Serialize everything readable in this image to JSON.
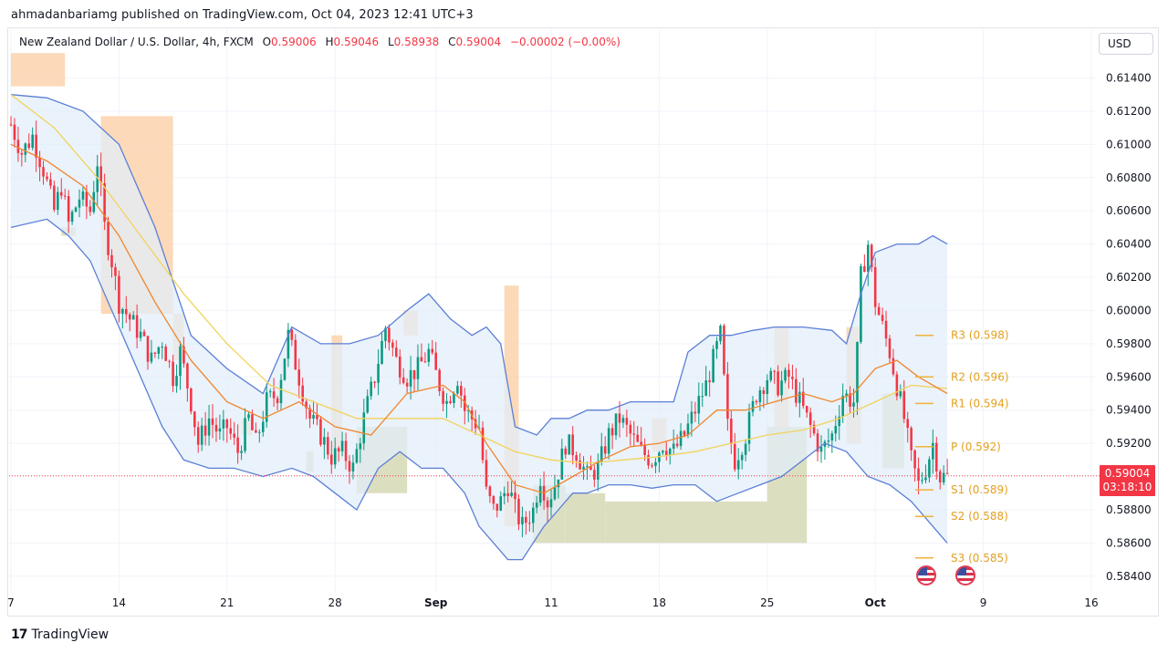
{
  "header": {
    "caption": "ahmadanbariamg published on TradingView.com, Oct 04, 2023 12:41 UTC+3"
  },
  "legend": {
    "symbol": "New Zealand Dollar / U.S. Dollar, 4h, FXCM",
    "o_label": "O",
    "o_value": "0.59006",
    "h_label": "H",
    "h_value": "0.59046",
    "l_label": "L",
    "l_value": "0.58938",
    "c_label": "C",
    "c_value": "0.59004",
    "change": "−0.00002 (−0.00%)"
  },
  "currency_button": "USD",
  "last_price": {
    "value": "0.59004",
    "countdown": "03:18:10"
  },
  "footer": {
    "logo": "17",
    "brand": "TradingView"
  },
  "colors": {
    "up": "#089981",
    "down": "#f23645",
    "band": "#5b7fd6",
    "band_fill": "#e3eefa",
    "ema_orange": "#f0862e",
    "ema_yellow": "#f2d35b",
    "supply": "#fbd2ad",
    "demand": "#d6d8b5",
    "pivot": "#f0b23c"
  },
  "icons": [
    "us-flag-icon",
    "us-flag-icon"
  ],
  "chart_data": {
    "type": "candlestick",
    "symbol": "NZDUSD",
    "timeframe": "4h",
    "ylim": [
      0.583,
      0.6154
    ],
    "y_ticks": [
      "0.61400",
      "0.61200",
      "0.61000",
      "0.60800",
      "0.60600",
      "0.60400",
      "0.60200",
      "0.60000",
      "0.59800",
      "0.59600",
      "0.59400",
      "0.59200",
      "0.58800",
      "0.58600",
      "0.58400"
    ],
    "x_ticks": [
      "7",
      "14",
      "21",
      "28",
      "Sep",
      "11",
      "18",
      "25",
      "Oct",
      "9",
      "16"
    ],
    "x_tick_bars": [
      0,
      30,
      60,
      90,
      118,
      150,
      180,
      210,
      240,
      270,
      300
    ],
    "closes_path": [
      [
        0,
        0.6112
      ],
      [
        3,
        0.6095
      ],
      [
        6,
        0.6105
      ],
      [
        9,
        0.6085
      ],
      [
        12,
        0.606
      ],
      [
        14,
        0.6075
      ],
      [
        16,
        0.6052
      ],
      [
        19,
        0.6068
      ],
      [
        22,
        0.606
      ],
      [
        24,
        0.609
      ],
      [
        26,
        0.605
      ],
      [
        28,
        0.603
      ],
      [
        30,
        0.6005
      ],
      [
        33,
        0.5995
      ],
      [
        36,
        0.5985
      ],
      [
        39,
        0.597
      ],
      [
        42,
        0.5982
      ],
      [
        45,
        0.596
      ],
      [
        47,
        0.5975
      ],
      [
        50,
        0.5945
      ],
      [
        52,
        0.592
      ],
      [
        55,
        0.5935
      ],
      [
        58,
        0.5925
      ],
      [
        60,
        0.593
      ],
      [
        63,
        0.5915
      ],
      [
        66,
        0.5935
      ],
      [
        68,
        0.592
      ],
      [
        71,
        0.5945
      ],
      [
        74,
        0.595
      ],
      [
        77,
        0.5985
      ],
      [
        80,
        0.596
      ],
      [
        83,
        0.5935
      ],
      [
        86,
        0.5925
      ],
      [
        89,
        0.5912
      ],
      [
        92,
        0.5915
      ],
      [
        95,
        0.5905
      ],
      [
        98,
        0.5935
      ],
      [
        101,
        0.596
      ],
      [
        104,
        0.599
      ],
      [
        107,
        0.597
      ],
      [
        110,
        0.596
      ],
      [
        113,
        0.5965
      ],
      [
        116,
        0.5975
      ],
      [
        119,
        0.5955
      ],
      [
        121,
        0.5945
      ],
      [
        124,
        0.596
      ],
      [
        126,
        0.594
      ],
      [
        128,
        0.5935
      ],
      [
        130,
        0.593
      ],
      [
        132,
        0.589
      ],
      [
        134,
        0.588
      ],
      [
        136,
        0.5885
      ],
      [
        138,
        0.5895
      ],
      [
        140,
        0.588
      ],
      [
        142,
        0.587
      ],
      [
        145,
        0.588
      ],
      [
        147,
        0.59
      ],
      [
        149,
        0.5885
      ],
      [
        151,
        0.5895
      ],
      [
        154,
        0.592
      ],
      [
        157,
        0.5915
      ],
      [
        160,
        0.59
      ],
      [
        163,
        0.5905
      ],
      [
        166,
        0.5925
      ],
      [
        169,
        0.5935
      ],
      [
        172,
        0.5925
      ],
      [
        175,
        0.5915
      ],
      [
        178,
        0.591
      ],
      [
        181,
        0.592
      ],
      [
        184,
        0.5915
      ],
      [
        187,
        0.5925
      ],
      [
        190,
        0.594
      ],
      [
        193,
        0.5955
      ],
      [
        195,
        0.597
      ],
      [
        197,
        0.5985
      ],
      [
        199,
        0.593
      ],
      [
        201,
        0.591
      ],
      [
        204,
        0.5925
      ],
      [
        207,
        0.595
      ],
      [
        210,
        0.596
      ],
      [
        213,
        0.5955
      ],
      [
        216,
        0.596
      ],
      [
        219,
        0.5945
      ],
      [
        222,
        0.593
      ],
      [
        225,
        0.5915
      ],
      [
        228,
        0.5925
      ],
      [
        231,
        0.595
      ],
      [
        234,
        0.5945
      ],
      [
        235,
        0.5975
      ],
      [
        236,
        0.602
      ],
      [
        238,
        0.604
      ],
      [
        240,
        0.6005
      ],
      [
        242,
        0.599
      ],
      [
        244,
        0.5975
      ],
      [
        246,
        0.5955
      ],
      [
        248,
        0.5935
      ],
      [
        250,
        0.591
      ],
      [
        252,
        0.5895
      ],
      [
        254,
        0.5905
      ],
      [
        256,
        0.592
      ],
      [
        258,
        0.59
      ],
      [
        260,
        0.59
      ]
    ],
    "bollinger_upper": [
      [
        0,
        0.613
      ],
      [
        10,
        0.6128
      ],
      [
        20,
        0.612
      ],
      [
        30,
        0.61
      ],
      [
        40,
        0.605
      ],
      [
        50,
        0.5985
      ],
      [
        60,
        0.5965
      ],
      [
        70,
        0.595
      ],
      [
        78,
        0.599
      ],
      [
        86,
        0.598
      ],
      [
        94,
        0.598
      ],
      [
        102,
        0.5985
      ],
      [
        110,
        0.6
      ],
      [
        116,
        0.601
      ],
      [
        122,
        0.5995
      ],
      [
        128,
        0.5985
      ],
      [
        132,
        0.599
      ],
      [
        136,
        0.598
      ],
      [
        140,
        0.593
      ],
      [
        146,
        0.5925
      ],
      [
        150,
        0.5935
      ],
      [
        155,
        0.5935
      ],
      [
        160,
        0.594
      ],
      [
        166,
        0.594
      ],
      [
        172,
        0.5945
      ],
      [
        178,
        0.5945
      ],
      [
        184,
        0.5945
      ],
      [
        188,
        0.5975
      ],
      [
        194,
        0.5985
      ],
      [
        200,
        0.5985
      ],
      [
        206,
        0.5988
      ],
      [
        212,
        0.599
      ],
      [
        220,
        0.599
      ],
      [
        228,
        0.5988
      ],
      [
        232,
        0.598
      ],
      [
        236,
        0.601
      ],
      [
        240,
        0.6035
      ],
      [
        246,
        0.604
      ],
      [
        252,
        0.604
      ],
      [
        256,
        0.6045
      ],
      [
        260,
        0.604
      ]
    ],
    "bollinger_lower": [
      [
        0,
        0.605
      ],
      [
        10,
        0.6055
      ],
      [
        16,
        0.6045
      ],
      [
        22,
        0.603
      ],
      [
        30,
        0.599
      ],
      [
        36,
        0.596
      ],
      [
        42,
        0.593
      ],
      [
        48,
        0.591
      ],
      [
        55,
        0.5905
      ],
      [
        62,
        0.5905
      ],
      [
        70,
        0.59
      ],
      [
        78,
        0.5905
      ],
      [
        84,
        0.59
      ],
      [
        90,
        0.589
      ],
      [
        96,
        0.588
      ],
      [
        102,
        0.5905
      ],
      [
        108,
        0.5915
      ],
      [
        114,
        0.5905
      ],
      [
        120,
        0.5905
      ],
      [
        126,
        0.589
      ],
      [
        130,
        0.587
      ],
      [
        134,
        0.586
      ],
      [
        138,
        0.585
      ],
      [
        142,
        0.585
      ],
      [
        148,
        0.587
      ],
      [
        152,
        0.588
      ],
      [
        156,
        0.589
      ],
      [
        160,
        0.589
      ],
      [
        166,
        0.5895
      ],
      [
        172,
        0.5895
      ],
      [
        178,
        0.5893
      ],
      [
        184,
        0.5895
      ],
      [
        190,
        0.5895
      ],
      [
        196,
        0.5885
      ],
      [
        202,
        0.589
      ],
      [
        208,
        0.5895
      ],
      [
        214,
        0.59
      ],
      [
        220,
        0.591
      ],
      [
        226,
        0.592
      ],
      [
        232,
        0.5915
      ],
      [
        238,
        0.59
      ],
      [
        244,
        0.5895
      ],
      [
        250,
        0.5885
      ],
      [
        254,
        0.5875
      ],
      [
        258,
        0.5865
      ],
      [
        260,
        0.586
      ]
    ],
    "ema_fast": [
      [
        0,
        0.61
      ],
      [
        10,
        0.609
      ],
      [
        20,
        0.6075
      ],
      [
        30,
        0.6045
      ],
      [
        40,
        0.6005
      ],
      [
        50,
        0.597
      ],
      [
        60,
        0.5945
      ],
      [
        70,
        0.5935
      ],
      [
        80,
        0.5945
      ],
      [
        90,
        0.593
      ],
      [
        100,
        0.5925
      ],
      [
        110,
        0.595
      ],
      [
        120,
        0.5955
      ],
      [
        126,
        0.5945
      ],
      [
        132,
        0.592
      ],
      [
        140,
        0.5895
      ],
      [
        148,
        0.589
      ],
      [
        156,
        0.59
      ],
      [
        164,
        0.591
      ],
      [
        172,
        0.5918
      ],
      [
        180,
        0.592
      ],
      [
        188,
        0.5925
      ],
      [
        196,
        0.594
      ],
      [
        204,
        0.594
      ],
      [
        212,
        0.5945
      ],
      [
        220,
        0.595
      ],
      [
        228,
        0.5945
      ],
      [
        234,
        0.595
      ],
      [
        240,
        0.5965
      ],
      [
        246,
        0.597
      ],
      [
        252,
        0.596
      ],
      [
        260,
        0.595
      ]
    ],
    "ema_slow": [
      [
        0,
        0.613
      ],
      [
        12,
        0.611
      ],
      [
        24,
        0.608
      ],
      [
        36,
        0.6045
      ],
      [
        48,
        0.601
      ],
      [
        60,
        0.598
      ],
      [
        72,
        0.5955
      ],
      [
        84,
        0.5945
      ],
      [
        96,
        0.5935
      ],
      [
        108,
        0.5935
      ],
      [
        120,
        0.5935
      ],
      [
        130,
        0.5925
      ],
      [
        140,
        0.5915
      ],
      [
        150,
        0.591
      ],
      [
        160,
        0.5908
      ],
      [
        170,
        0.591
      ],
      [
        180,
        0.5912
      ],
      [
        190,
        0.5915
      ],
      [
        200,
        0.592
      ],
      [
        210,
        0.5925
      ],
      [
        220,
        0.5928
      ],
      [
        230,
        0.5935
      ],
      [
        240,
        0.5945
      ],
      [
        250,
        0.5955
      ],
      [
        260,
        0.5953
      ]
    ],
    "supply_zones": [
      [
        0,
        15,
        0.6135,
        0.6155
      ],
      [
        25,
        45,
        0.5998,
        0.6117
      ],
      [
        45,
        48,
        0.597,
        0.5998
      ],
      [
        64,
        67,
        0.5925,
        0.5935
      ],
      [
        89,
        92,
        0.591,
        0.5985
      ],
      [
        109,
        113,
        0.5985,
        0.6
      ],
      [
        137,
        141,
        0.587,
        0.6015
      ],
      [
        178,
        182,
        0.5915,
        0.5935
      ],
      [
        212,
        216,
        0.5915,
        0.599
      ],
      [
        232,
        236,
        0.592,
        0.599
      ],
      [
        254,
        256,
        0.59,
        0.5905
      ]
    ],
    "demand_zones": [
      [
        14,
        18,
        0.6045,
        0.605
      ],
      [
        82,
        84,
        0.5903,
        0.5915
      ],
      [
        96,
        110,
        0.589,
        0.593
      ],
      [
        145,
        154,
        0.586,
        0.5895
      ],
      [
        154,
        165,
        0.586,
        0.589
      ],
      [
        165,
        210,
        0.586,
        0.5885
      ],
      [
        210,
        221,
        0.586,
        0.593
      ],
      [
        242,
        248,
        0.5905,
        0.595
      ]
    ],
    "pivots": [
      {
        "label": "R3",
        "value": "0.598",
        "level": 0.5985
      },
      {
        "label": "R2",
        "value": "0.596",
        "level": 0.596
      },
      {
        "label": "R1",
        "value": "0.594",
        "level": 0.5944
      },
      {
        "label": "P",
        "value": "0.592",
        "level": 0.5918
      },
      {
        "label": "S1",
        "value": "0.589",
        "level": 0.5892
      },
      {
        "label": "S2",
        "value": "0.588",
        "level": 0.5876
      },
      {
        "label": "S3",
        "value": "0.585",
        "level": 0.5851
      }
    ],
    "last_close": 0.59004
  }
}
